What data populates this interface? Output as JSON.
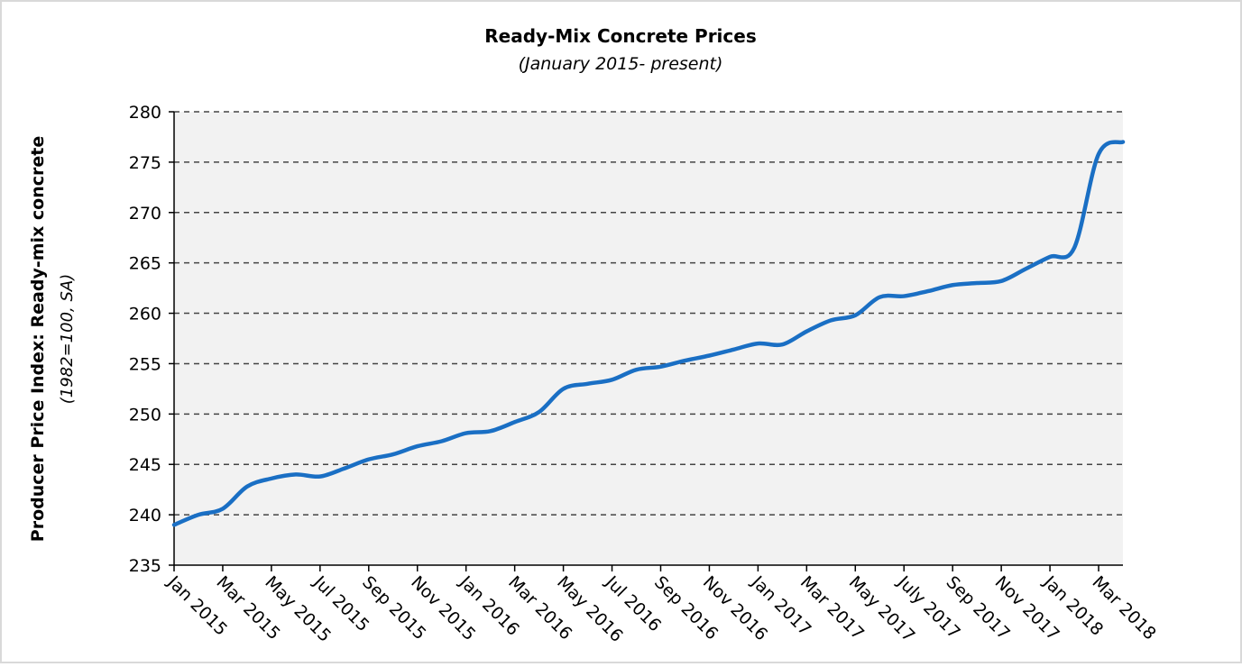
{
  "chart_data": {
    "type": "line",
    "title": "Ready-Mix Concrete Prices",
    "subtitle": "(January 2015- present)",
    "y_label": "Producer Price Index: Ready-mix concrete",
    "y_label_note": "(1982=100, SA)",
    "categories": [
      "Jan 2015",
      null,
      "Mar 2015",
      null,
      "May 2015",
      null,
      "Jul 2015",
      null,
      "Sep 2015",
      null,
      "Nov 2015",
      null,
      "Jan 2016",
      null,
      "Mar 2016",
      null,
      "May 2016",
      null,
      "Jul 2016",
      null,
      "Sep 2016",
      null,
      "Nov 2016",
      null,
      "Jan 2017",
      null,
      "Mar 2017",
      null,
      "May 2017",
      null,
      "July 2017",
      null,
      "Sep 2017",
      null,
      "Nov 2017",
      null,
      "Jan 2018",
      null,
      "Mar 2018",
      null
    ],
    "series": [
      {
        "name": "Ready-mix concrete",
        "color": "#1a6fc4",
        "values": [
          239.0,
          240.0,
          240.6,
          242.8,
          243.6,
          244.0,
          243.8,
          244.6,
          245.5,
          246.0,
          246.8,
          247.3,
          248.1,
          248.3,
          249.2,
          250.2,
          252.5,
          253.0,
          253.4,
          254.4,
          254.7,
          255.3,
          255.8,
          256.4,
          257.0,
          256.9,
          258.2,
          259.3,
          259.8,
          261.6,
          261.7,
          262.2,
          262.8,
          263.0,
          263.2,
          264.4,
          265.6,
          266.5,
          275.8,
          277.0
        ]
      }
    ],
    "ylim": [
      235,
      280
    ],
    "yticks": [
      235,
      240,
      245,
      250,
      255,
      260,
      265,
      270,
      275,
      280
    ],
    "grid": true
  }
}
